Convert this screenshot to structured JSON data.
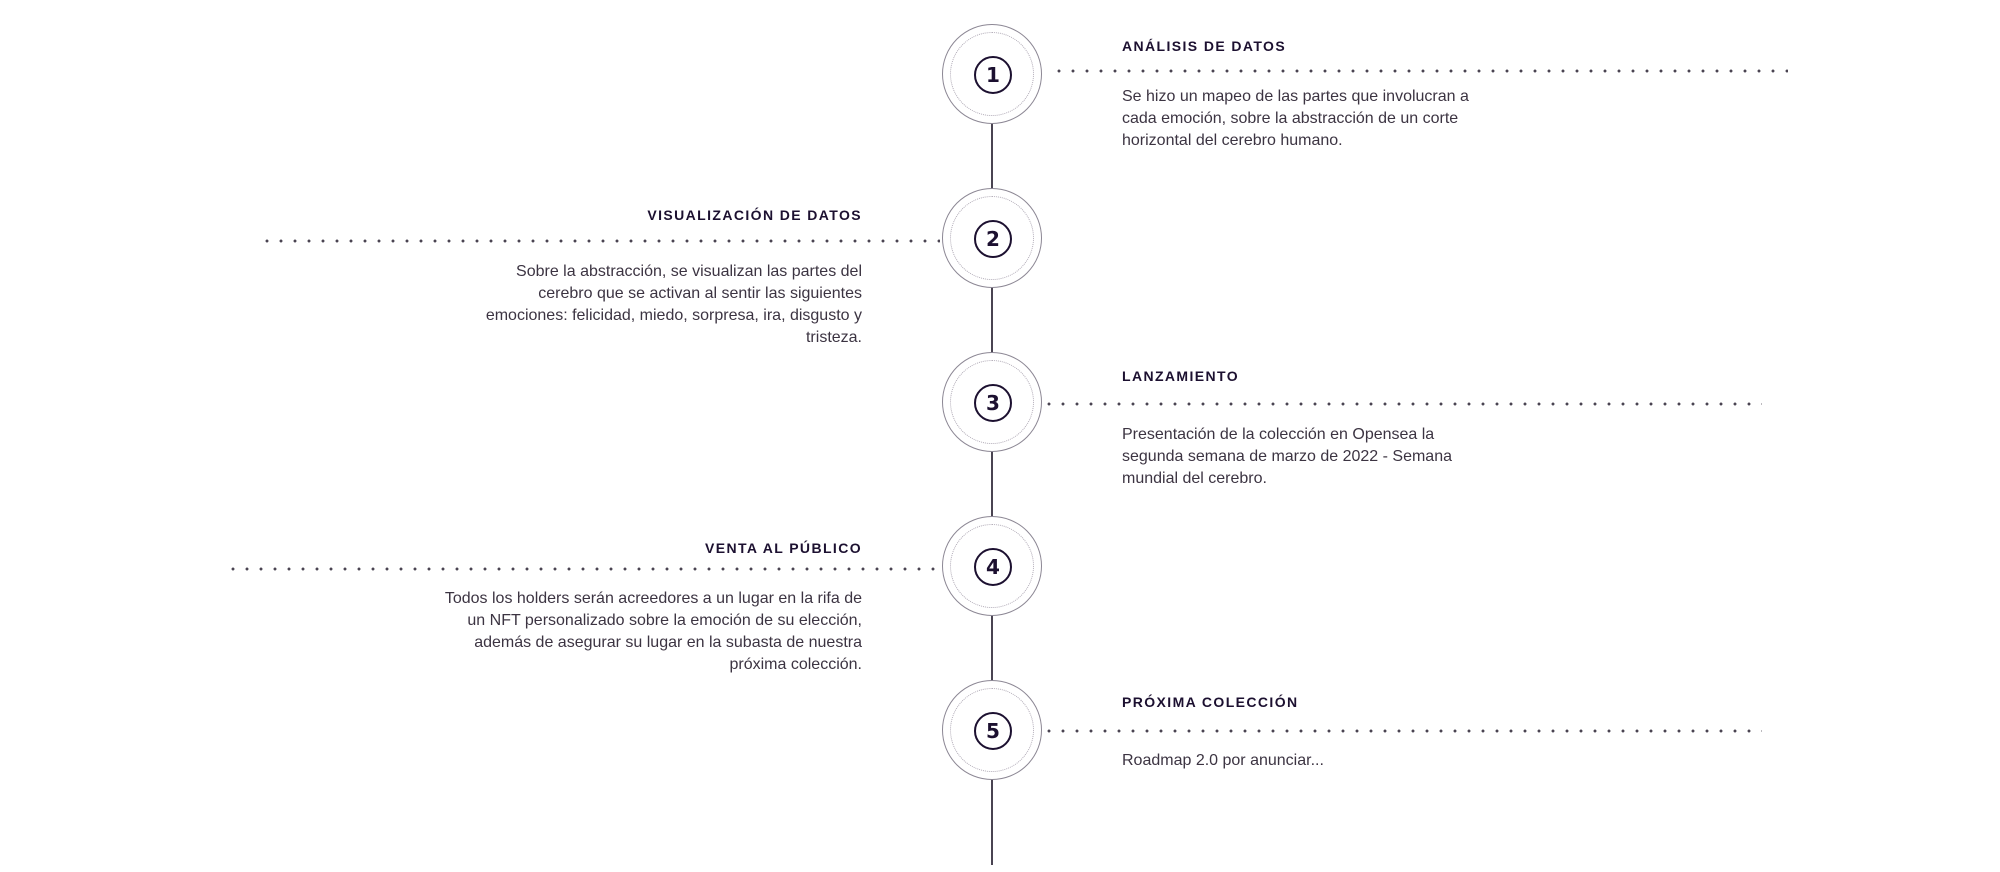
{
  "roadmap": {
    "steps": [
      {
        "number": "1",
        "title": "ANÁLISIS DE DATOS",
        "description": "Se hizo un mapeo de las partes que involucran a cada emoción, sobre la abstracción de un corte horizontal del cerebro humano."
      },
      {
        "number": "2",
        "title": "VISUALIZACIÓN DE DATOS",
        "description": "Sobre la abstracción, se visualizan las partes del cerebro que se activan al sentir las siguientes emociones: felicidad, miedo, sorpresa, ira, disgusto y tristeza."
      },
      {
        "number": "3",
        "title": "LANZAMIENTO",
        "description": "Presentación de la colección en Opensea la segunda semana de marzo de 2022 - Semana mundial del cerebro."
      },
      {
        "number": "4",
        "title": "VENTA AL PÚBLICO",
        "description": "Todos los holders serán acreedores a un lugar en la rifa de un NFT personalizado sobre la emoción de su elección, además de asegurar su lugar en la subasta de nuestra próxima colección."
      },
      {
        "number": "5",
        "title": "PRÓXIMA COLECCIÓN",
        "description": "Roadmap 2.0 por anunciar..."
      }
    ]
  }
}
